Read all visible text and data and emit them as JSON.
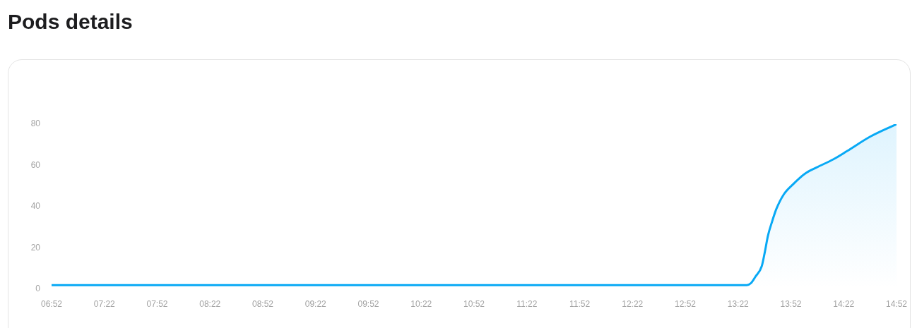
{
  "chart_data": {
    "type": "area",
    "title": "Pods details",
    "x": [
      6.8667,
      7.3667,
      7.8667,
      8.3667,
      8.8667,
      9.3667,
      9.8667,
      10.3667,
      10.8667,
      11.3667,
      11.8667,
      12.3667,
      12.8667,
      13.3667,
      13.45,
      13.49,
      13.53,
      13.59,
      13.62,
      13.65,
      13.69,
      13.73,
      13.8,
      13.89,
      14.0,
      14.11,
      14.27,
      14.4,
      14.62,
      14.8667
    ],
    "values": [
      2,
      2,
      2,
      2,
      2,
      2,
      2,
      2,
      2,
      2,
      2,
      2,
      2,
      2,
      2,
      3,
      6,
      11,
      18,
      26,
      33,
      39,
      46,
      51,
      56,
      59,
      63,
      67,
      74,
      80
    ],
    "color": "#08a9f5",
    "xlim": [
      6.8667,
      14.8667
    ],
    "xticks": [
      {
        "value": 6.8667,
        "label": "06:52"
      },
      {
        "value": 7.3667,
        "label": "07:22"
      },
      {
        "value": 7.8667,
        "label": "07:52"
      },
      {
        "value": 8.3667,
        "label": "08:22"
      },
      {
        "value": 8.8667,
        "label": "08:52"
      },
      {
        "value": 9.3667,
        "label": "09:22"
      },
      {
        "value": 9.8667,
        "label": "09:52"
      },
      {
        "value": 10.3667,
        "label": "10:22"
      },
      {
        "value": 10.8667,
        "label": "10:52"
      },
      {
        "value": 11.3667,
        "label": "11:22"
      },
      {
        "value": 11.8667,
        "label": "11:52"
      },
      {
        "value": 12.3667,
        "label": "12:22"
      },
      {
        "value": 12.8667,
        "label": "12:52"
      },
      {
        "value": 13.3667,
        "label": "13:22"
      },
      {
        "value": 13.8667,
        "label": "13:52"
      },
      {
        "value": 14.3667,
        "label": "14:22"
      },
      {
        "value": 14.8667,
        "label": "14:52"
      }
    ],
    "ylim": [
      0,
      80
    ],
    "yticks": [
      0,
      20,
      40,
      60,
      80
    ]
  }
}
